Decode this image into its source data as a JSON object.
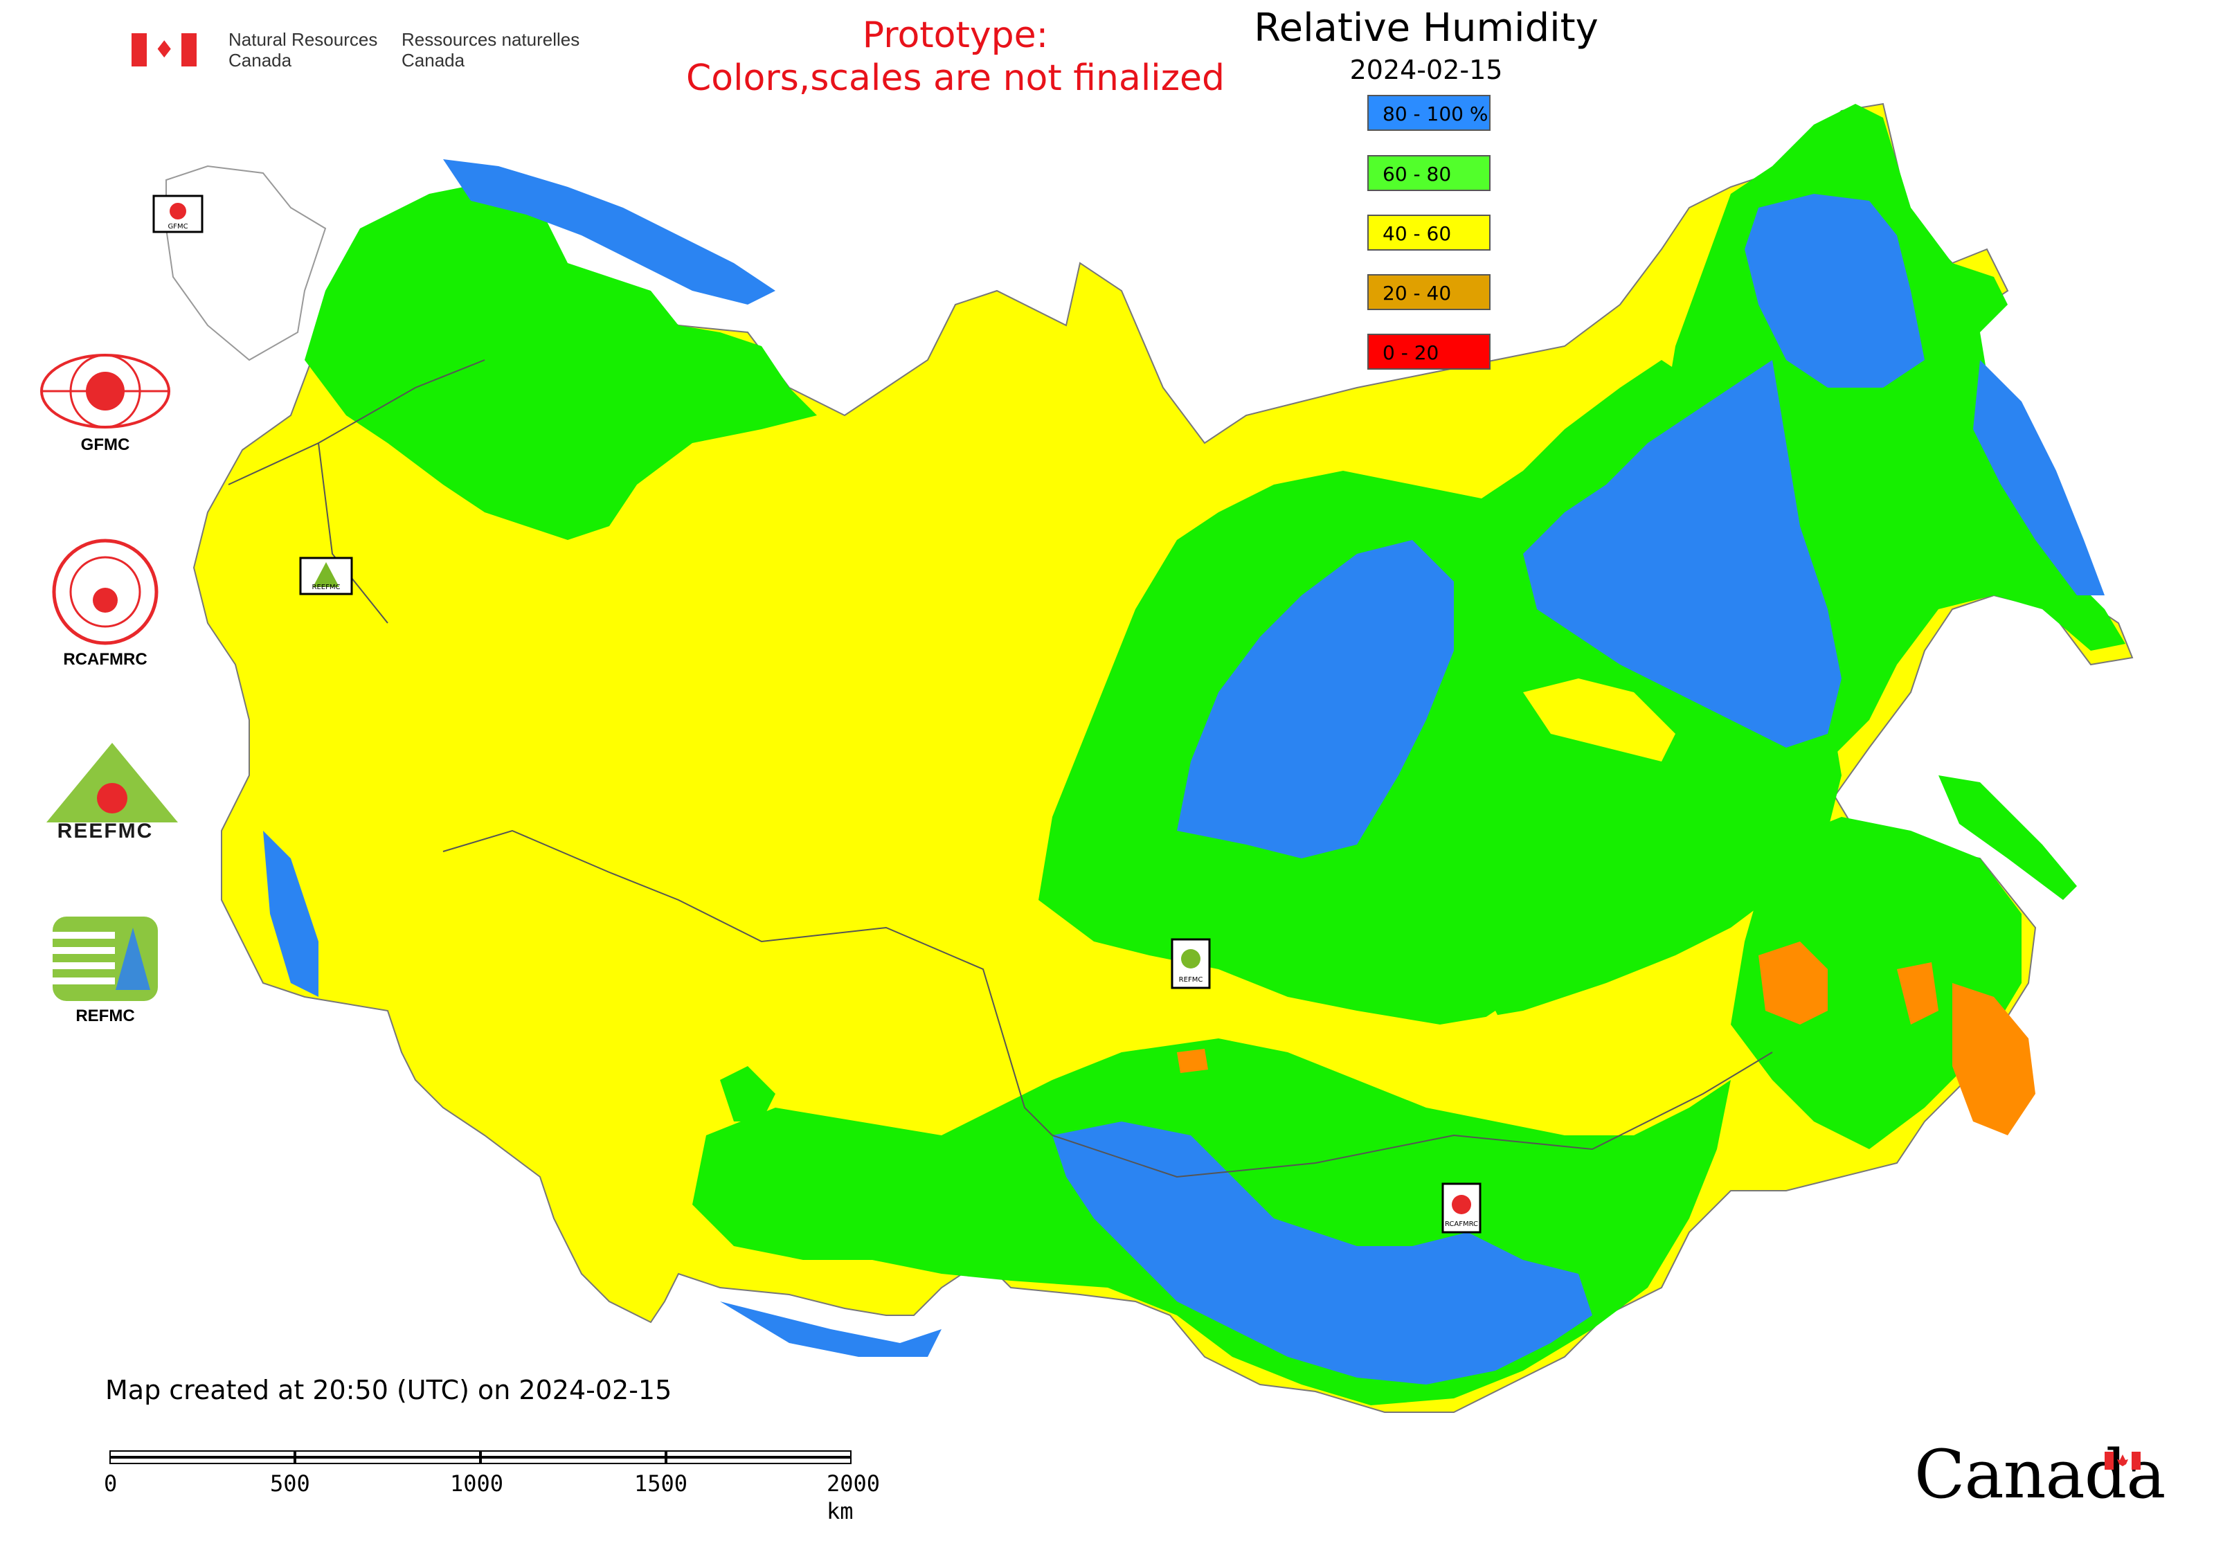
{
  "header": {
    "agency_en": [
      "Natural Resources",
      "Canada"
    ],
    "agency_fr": [
      "Ressources naturelles",
      "Canada"
    ],
    "prototype_line1": "Prototype:",
    "prototype_line2": "Colors,scales are not finalized"
  },
  "map": {
    "title": "Relative Humidity",
    "date": "2024-02-15",
    "legend": [
      {
        "label": "80 - 100 %",
        "color": "#2b8cff"
      },
      {
        "label": "60 - 80",
        "color": "#52ff2b"
      },
      {
        "label": "40 - 60",
        "color": "#ffff00"
      },
      {
        "label": "20 - 40",
        "color": "#e0a000"
      },
      {
        "label": "0 - 20",
        "color": "#ff0000"
      }
    ],
    "colors": {
      "blue": "#2b84f2",
      "green": "#16ef00",
      "yellow": "#ffff00",
      "orange": "#ff8c00",
      "border": "#555555"
    },
    "center_markers": [
      {
        "name": "gfmc-marker",
        "label": "GFMC"
      },
      {
        "name": "reefmc-marker",
        "label": "REEFMC"
      },
      {
        "name": "refmc-marker",
        "label": "REFMC"
      },
      {
        "name": "rcafmrc-marker",
        "label": "RCAFMRC"
      }
    ]
  },
  "side_logos": [
    {
      "label": "GFMC"
    },
    {
      "label": "RCAFMRC"
    },
    {
      "label": "REEFMC"
    },
    {
      "label": "REFMC"
    }
  ],
  "footer": {
    "created_text": "Map created at 20:50 (UTC) on 2024-02-15",
    "scale_ticks": [
      "0",
      "500",
      "1000",
      "1500",
      "2000 km"
    ],
    "wordmark": "Canada"
  }
}
